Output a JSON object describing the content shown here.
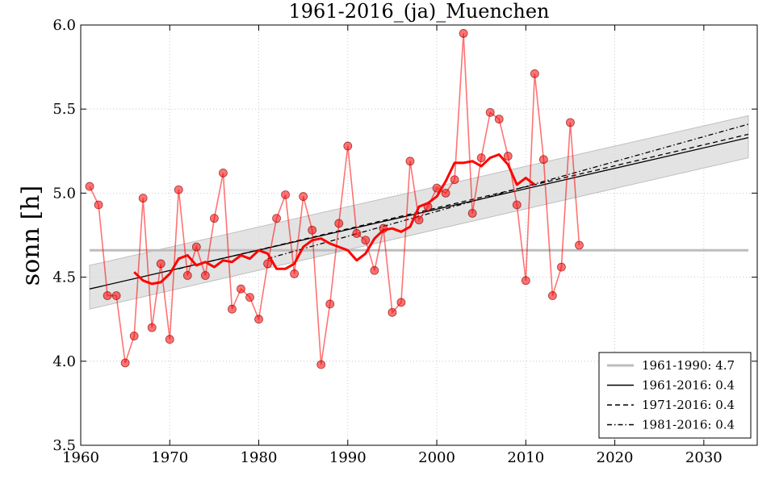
{
  "chart_data": {
    "type": "line",
    "title": "1961-2016_(ja)_Muenchen",
    "xlabel": "",
    "ylabel": "sonn [h]",
    "xlim": [
      1960,
      2036
    ],
    "ylim": [
      3.5,
      6.0
    ],
    "x_ticks": [
      1960,
      1970,
      1980,
      1990,
      2000,
      2010,
      2020,
      2030
    ],
    "y_ticks": [
      "3.5",
      "4.0",
      "4.5",
      "5.0",
      "5.5",
      "6.0"
    ],
    "grid": true,
    "legend_position": "bottom-right",
    "colors": {
      "observations": "#ff0000",
      "smoothed": "#ff0000",
      "reference": "#bdbdbd",
      "trend": "#000000",
      "band": "#d9d9d9"
    },
    "series": [
      {
        "name": "annual values",
        "x": [
          1961,
          1962,
          1963,
          1964,
          1965,
          1966,
          1967,
          1968,
          1969,
          1970,
          1971,
          1972,
          1973,
          1974,
          1975,
          1976,
          1977,
          1978,
          1979,
          1980,
          1981,
          1982,
          1983,
          1984,
          1985,
          1986,
          1987,
          1988,
          1989,
          1990,
          1991,
          1992,
          1993,
          1994,
          1995,
          1996,
          1997,
          1998,
          1999,
          2000,
          2001,
          2002,
          2003,
          2004,
          2005,
          2006,
          2007,
          2008,
          2009,
          2010,
          2011,
          2012,
          2013,
          2014,
          2015,
          2016
        ],
        "values": [
          5.04,
          4.93,
          4.39,
          4.39,
          3.99,
          4.15,
          4.97,
          4.2,
          4.58,
          4.13,
          5.02,
          4.51,
          4.68,
          4.51,
          4.85,
          5.12,
          4.31,
          4.43,
          4.38,
          4.25,
          4.58,
          4.85,
          4.99,
          4.52,
          4.98,
          4.78,
          3.98,
          4.34,
          4.82,
          5.28,
          4.76,
          4.72,
          4.54,
          4.79,
          4.29,
          4.35,
          5.19,
          4.84,
          4.92,
          5.03,
          5.0,
          5.08,
          5.95,
          4.88,
          5.21,
          5.48,
          5.44,
          5.22,
          4.93,
          4.48,
          5.71,
          5.2,
          4.39,
          4.56,
          5.42,
          4.69
        ]
      },
      {
        "name": "running mean",
        "x": [
          1966,
          1967,
          1968,
          1969,
          1970,
          1971,
          1972,
          1973,
          1974,
          1975,
          1976,
          1977,
          1978,
          1979,
          1980,
          1981,
          1982,
          1983,
          1984,
          1985,
          1986,
          1987,
          1988,
          1989,
          1990,
          1991,
          1992,
          1993,
          1994,
          1995,
          1996,
          1997,
          1998,
          1999,
          2000,
          2001,
          2002,
          2003,
          2004,
          2005,
          2006,
          2007,
          2008,
          2009,
          2010,
          2011
        ],
        "values": [
          4.53,
          4.48,
          4.46,
          4.47,
          4.52,
          4.61,
          4.63,
          4.57,
          4.59,
          4.56,
          4.6,
          4.59,
          4.63,
          4.61,
          4.66,
          4.64,
          4.55,
          4.55,
          4.58,
          4.68,
          4.72,
          4.73,
          4.7,
          4.68,
          4.66,
          4.6,
          4.64,
          4.73,
          4.78,
          4.79,
          4.77,
          4.8,
          4.92,
          4.94,
          4.98,
          5.07,
          5.18,
          5.18,
          5.19,
          5.16,
          5.21,
          5.23,
          5.17,
          5.05,
          5.09,
          5.05
        ]
      }
    ],
    "band": {
      "x": [
        1961,
        2035
      ],
      "lower": [
        4.31,
        5.21
      ],
      "upper": [
        4.57,
        5.46
      ]
    },
    "reference_line": {
      "label": "1961-1990: 4.7",
      "y": 4.66,
      "x": [
        1961,
        2035
      ]
    },
    "trend_lines": [
      {
        "label": "1961-2016: 0.4",
        "style": "solid",
        "x": [
          1961,
          2035
        ],
        "y": [
          4.43,
          5.33
        ]
      },
      {
        "label": "1971-2016: 0.4",
        "style": "dashed",
        "x": [
          1971,
          2035
        ],
        "y": [
          4.55,
          5.35
        ]
      },
      {
        "label": "1981-2016: 0.4",
        "style": "dashdot",
        "x": [
          1981,
          2035
        ],
        "y": [
          4.61,
          5.41
        ]
      }
    ],
    "legend": [
      "1961-1990: 4.7",
      "1961-2016: 0.4",
      "1971-2016: 0.4",
      "1981-2016: 0.4"
    ]
  }
}
